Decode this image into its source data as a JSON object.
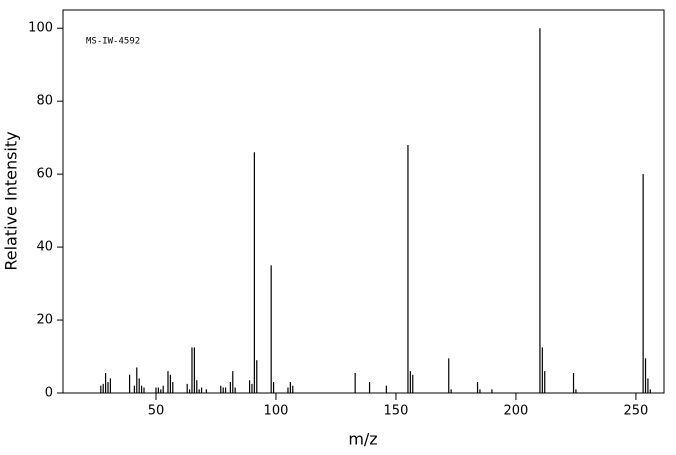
{
  "chart_data": {
    "type": "bar",
    "annotation": "MS-IW-4592",
    "x_label": "m/z",
    "y_label": "Relative Intensity",
    "color": "#000000",
    "x": [
      27,
      28,
      29,
      30,
      31,
      39,
      41,
      42,
      43,
      44,
      45,
      50,
      51,
      52,
      53,
      55,
      56,
      57,
      63,
      64,
      65,
      66,
      67,
      68,
      69,
      71,
      77,
      78,
      79,
      81,
      82,
      83,
      89,
      90,
      91,
      92,
      98,
      99,
      105,
      106,
      107,
      133,
      139,
      146,
      155,
      156,
      157,
      172,
      173,
      184,
      185,
      190,
      210,
      211,
      212,
      224,
      225,
      253,
      254,
      255,
      256
    ],
    "values": [
      2,
      2.5,
      5.5,
      3,
      4,
      5,
      2,
      7,
      4,
      2,
      1.5,
      1.5,
      1.5,
      1,
      2,
      6,
      5,
      3,
      2.5,
      1,
      12.5,
      12.5,
      3.5,
      1,
      1.5,
      1,
      2,
      1.5,
      1.5,
      3,
      6,
      1.5,
      3.5,
      2.5,
      66,
      9,
      35,
      3,
      1.5,
      3,
      2,
      5.5,
      3,
      2,
      68,
      6,
      5,
      9.5,
      1,
      3,
      1,
      1,
      100,
      12.5,
      6,
      5.5,
      1,
      60,
      9.5,
      4,
      1
    ],
    "xlim": [
      11.25,
      261.7
    ],
    "ylim": [
      0,
      105
    ],
    "xticks": [
      50,
      100,
      150,
      200,
      250
    ],
    "yticks": [
      0,
      20,
      40,
      60,
      80,
      100
    ]
  }
}
